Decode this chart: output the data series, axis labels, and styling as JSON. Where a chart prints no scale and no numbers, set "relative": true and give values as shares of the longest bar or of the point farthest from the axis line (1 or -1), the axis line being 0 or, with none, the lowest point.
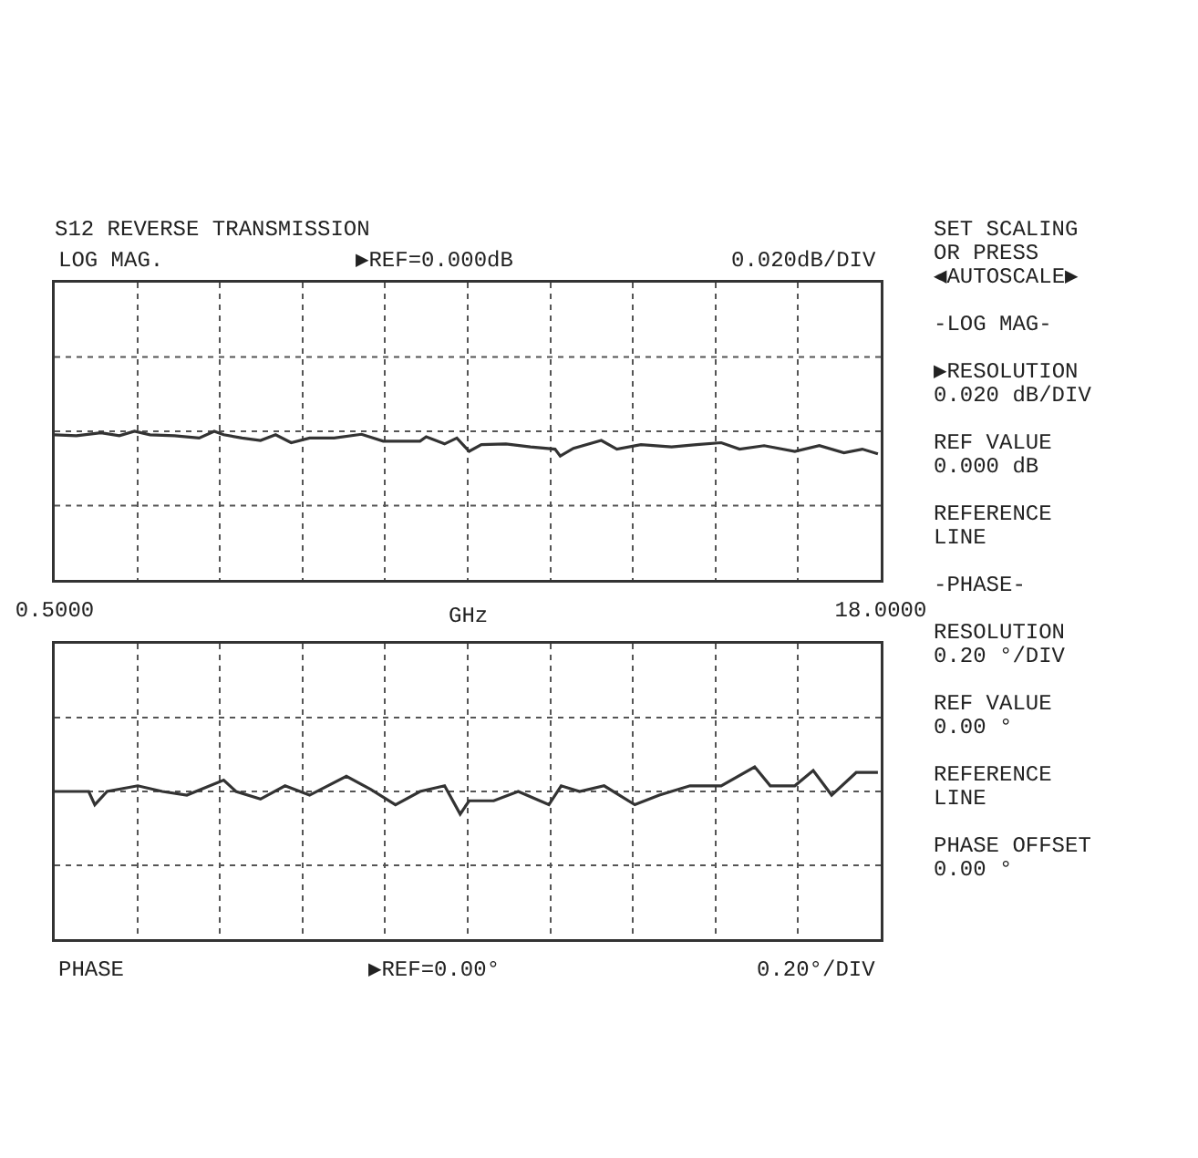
{
  "chart_data": [
    {
      "type": "line",
      "title": "S12 REVERSE TRANSMISSION",
      "xlabel": "GHz",
      "annotations": [
        "LOG MAG.",
        "▶REF=0.000dB",
        "0.020dB/DIV"
      ],
      "relative": true,
      "x": [
        0.5,
        0.96,
        1.48,
        1.87,
        2.19,
        2.52,
        3.04,
        3.56,
        3.88,
        4.08,
        4.47,
        4.86,
        5.18,
        5.51,
        5.9,
        6.42,
        7.0,
        7.46,
        8.24,
        8.37,
        8.76,
        9.02,
        9.28,
        9.54,
        10.06,
        10.58,
        11.1,
        11.21,
        11.49,
        12.08,
        12.41,
        12.92,
        13.57,
        14.1,
        14.62,
        15.01,
        15.53,
        16.18,
        16.7,
        17.22,
        17.61,
        17.94
      ],
      "series": [
        {
          "color": "#333333",
          "values": [
            -0.14,
            -0.18,
            -0.06,
            -0.18,
            0,
            -0.14,
            -0.18,
            -0.27,
            0,
            -0.14,
            -0.27,
            -0.37,
            -0.14,
            -0.46,
            -0.27,
            -0.27,
            -0.12,
            -0.4,
            -0.4,
            -0.22,
            -0.51,
            -0.27,
            -0.81,
            -0.54,
            -0.51,
            -0.63,
            -0.72,
            -1,
            -0.69,
            -0.37,
            -0.72,
            -0.54,
            -0.63,
            -0.54,
            -0.46,
            -0.72,
            -0.58,
            -0.81,
            -0.58,
            -0.87,
            -0.72,
            -0.91
          ]
        }
      ],
      "xlim": [
        0.5,
        18
      ],
      "xticks": [
        {
          "value": 0.5,
          "label": "0.5000"
        },
        {
          "value": 2.25,
          "label": null
        },
        {
          "value": 4.0,
          "label": null
        },
        {
          "value": 5.75,
          "label": null
        },
        {
          "value": 7.5,
          "label": null
        },
        {
          "value": 9.25,
          "label": null
        },
        {
          "value": 11.0,
          "label": null
        },
        {
          "value": 12.75,
          "label": null
        },
        {
          "value": 14.5,
          "label": null
        },
        {
          "value": 16.25,
          "label": null
        },
        {
          "value": 18,
          "label": "18.0000"
        }
      ],
      "grid": true,
      "tick_labels": "x"
    },
    {
      "type": "line",
      "annotations": [
        "PHASE",
        "▶REF=0.00°",
        "0.20°/DIV"
      ],
      "relative": true,
      "x": [
        0.5,
        1.22,
        1.35,
        1.61,
        2.26,
        2.78,
        3.3,
        4.08,
        4.34,
        4.86,
        5.38,
        5.9,
        6.68,
        7.2,
        7.72,
        8.24,
        8.76,
        9.09,
        9.28,
        9.8,
        10.32,
        10.97,
        11.23,
        11.62,
        12.14,
        12.79,
        13.31,
        13.96,
        14.62,
        15.33,
        15.66,
        16.18,
        16.57,
        16.96,
        17.48,
        17.94
      ],
      "series": [
        {
          "color": "#333333",
          "values": [
            0,
            0,
            -0.54,
            0,
            0.23,
            0,
            -0.15,
            0.46,
            0,
            -0.31,
            0.23,
            -0.15,
            0.62,
            0.08,
            -0.54,
            0,
            0.23,
            -0.92,
            -0.38,
            -0.38,
            0,
            -0.54,
            0.23,
            0,
            0.23,
            -0.54,
            -0.15,
            0.23,
            0.23,
            1,
            0.23,
            0.23,
            0.85,
            -0.15,
            0.77,
            0.77
          ]
        }
      ],
      "xlim": [
        0.5,
        18
      ],
      "xticks": [
        {
          "value": 0.5,
          "label": null
        },
        {
          "value": 2.25,
          "label": null
        },
        {
          "value": 4.0,
          "label": null
        },
        {
          "value": 5.75,
          "label": null
        },
        {
          "value": 7.5,
          "label": null
        },
        {
          "value": 9.25,
          "label": null
        },
        {
          "value": 11.0,
          "label": null
        },
        {
          "value": 12.75,
          "label": null
        },
        {
          "value": 14.5,
          "label": null
        },
        {
          "value": 16.25,
          "label": null
        },
        {
          "value": 18,
          "label": null
        }
      ],
      "grid": true,
      "tick_labels": false
    },
    {
      "type": "other",
      "annotations": [
        "SET SCALING\nOR PRESS\n◀AUTOSCALE▶",
        "-LOG MAG-",
        "▶RESOLUTION\n0.020 dB/DIV",
        "REF VALUE\n0.000 dB",
        "REFERENCE\nLINE",
        "-PHASE-",
        "RESOLUTION\n0.20 °/DIV",
        "REF VALUE\n0.00 °",
        "REFERENCE\nLINE",
        "PHASE OFFSET\n0.00 °"
      ]
    }
  ]
}
